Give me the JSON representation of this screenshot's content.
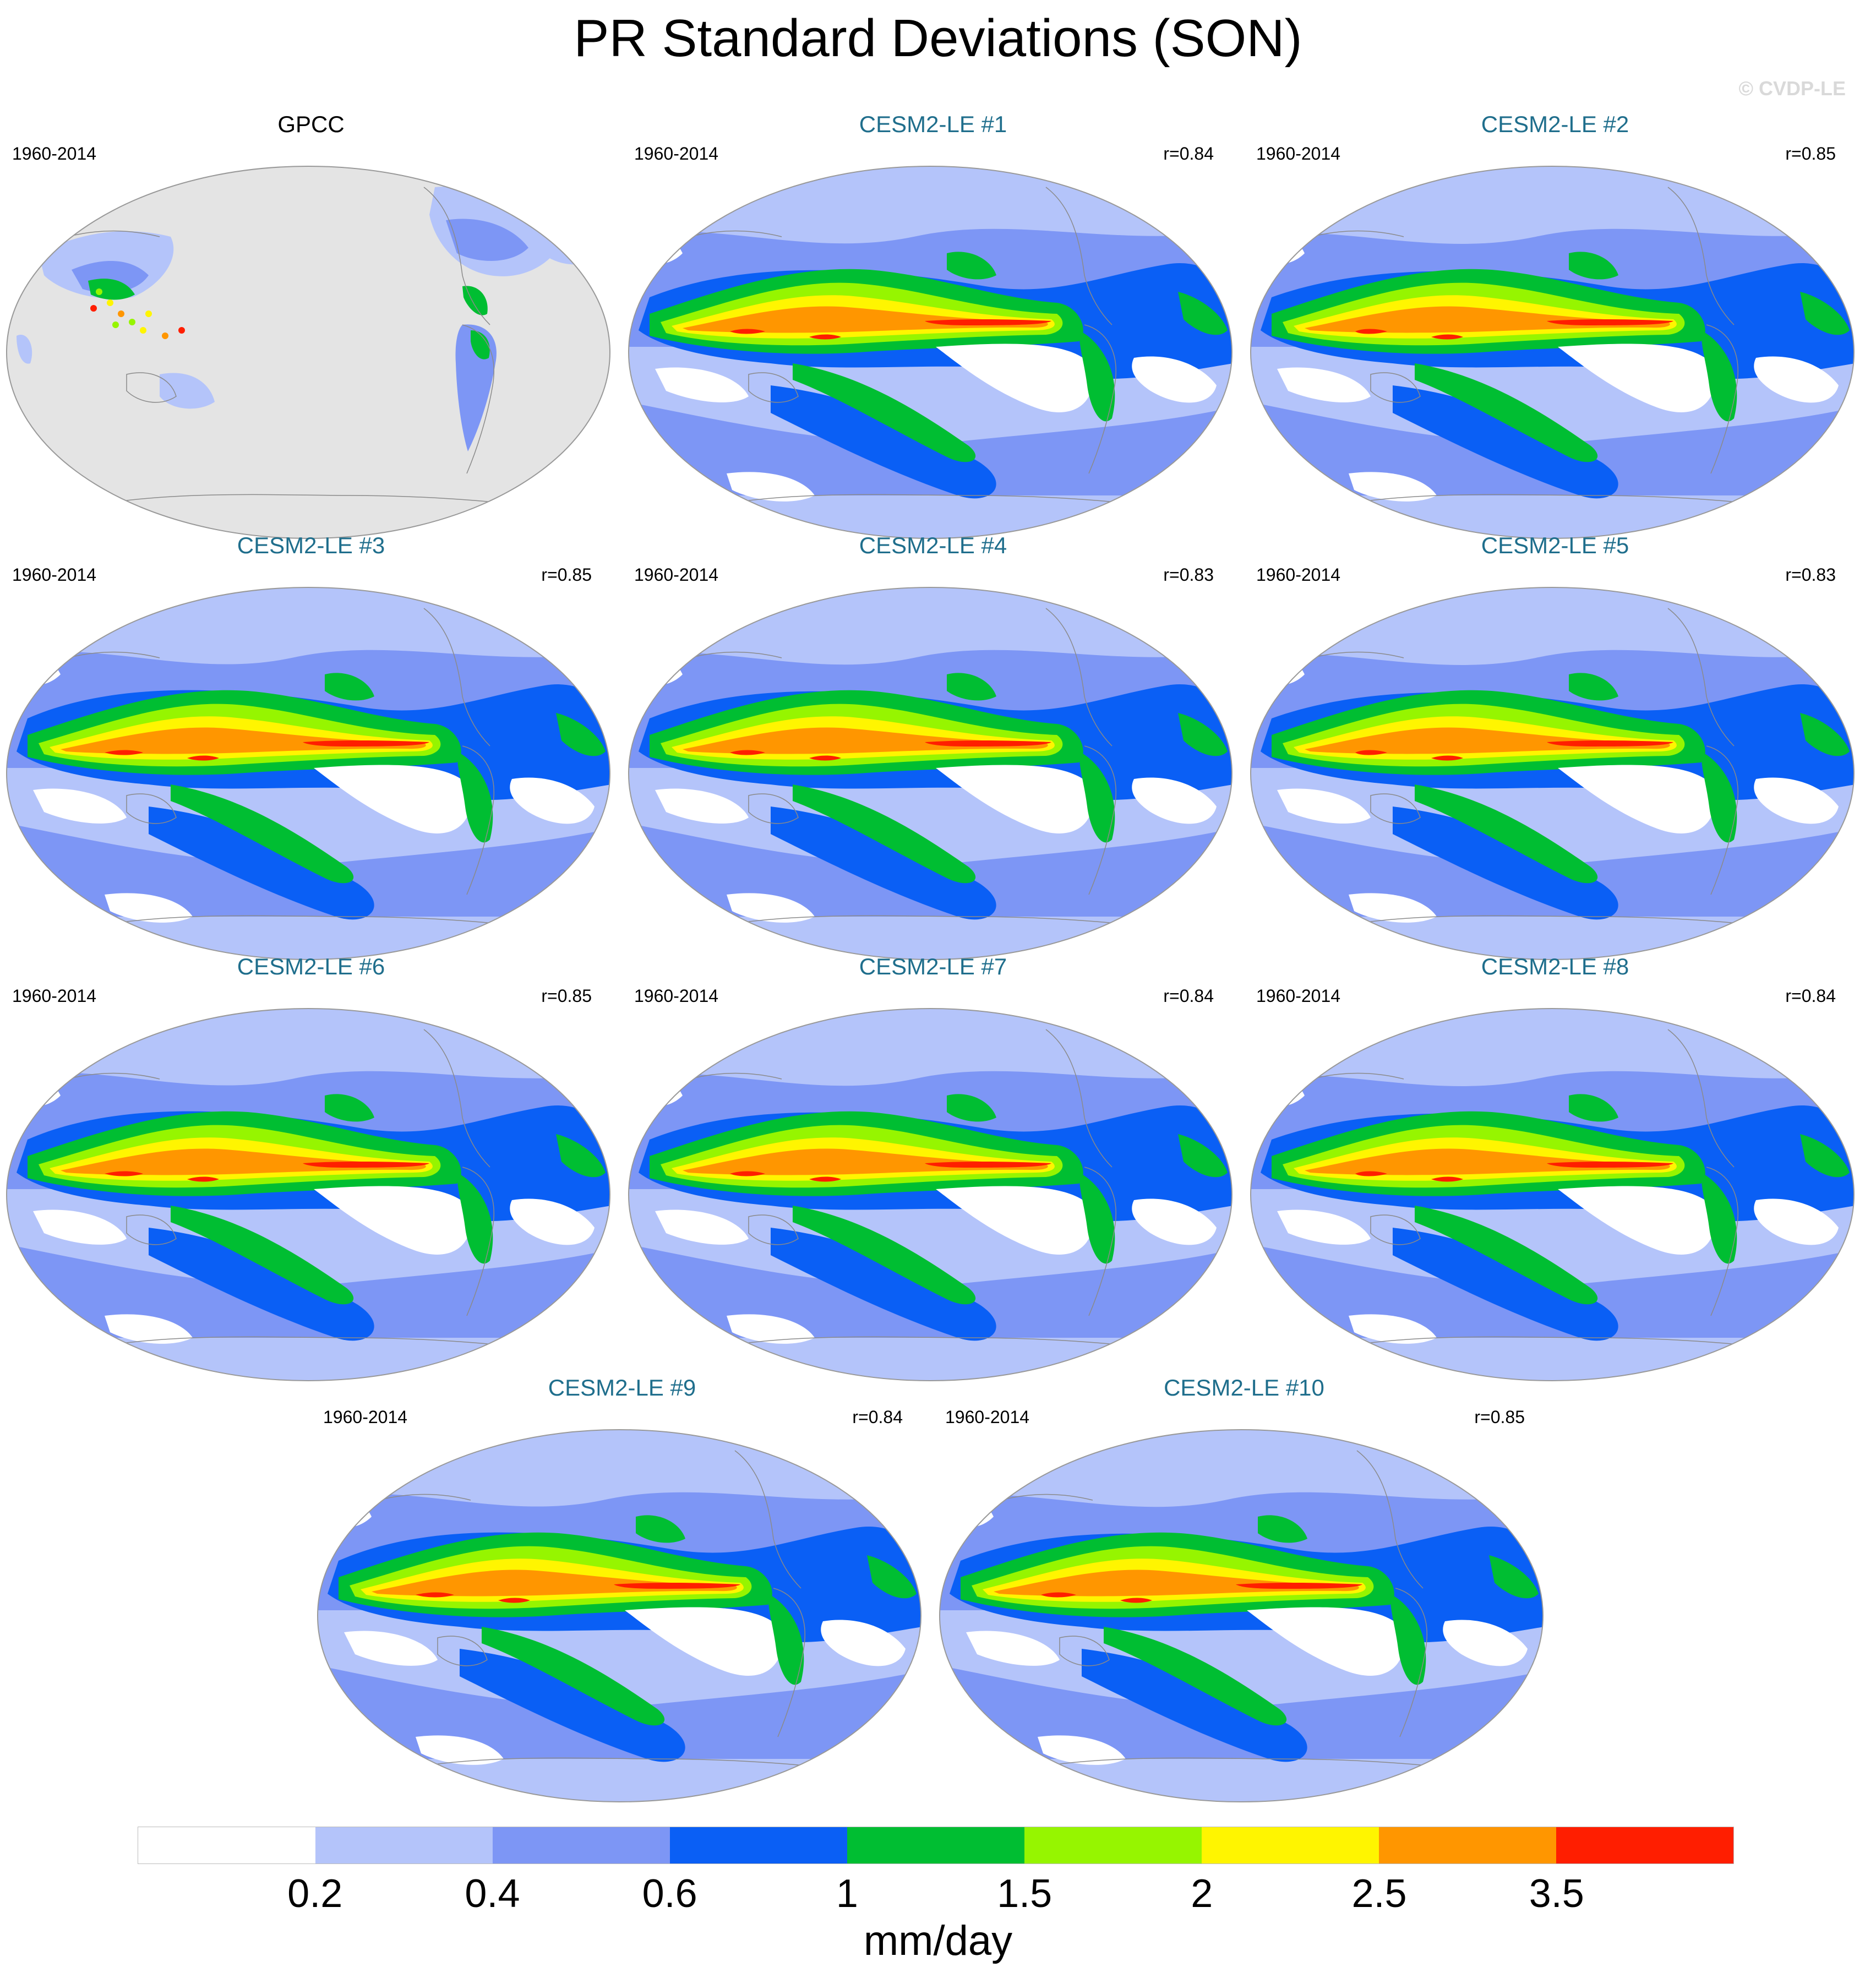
{
  "title": "PR Standard Deviations (SON)",
  "copyright": "© CVDP-LE",
  "panels": [
    {
      "title": "GPCC",
      "period": "1960-2014",
      "r": "",
      "type": "obs"
    },
    {
      "title": "CESM2-LE #1",
      "period": "1960-2014",
      "r": "r=0.84",
      "type": "model"
    },
    {
      "title": "CESM2-LE #2",
      "period": "1960-2014",
      "r": "r=0.85",
      "type": "model"
    },
    {
      "title": "CESM2-LE #3",
      "period": "1960-2014",
      "r": "r=0.85",
      "type": "model"
    },
    {
      "title": "CESM2-LE #4",
      "period": "1960-2014",
      "r": "r=0.83",
      "type": "model"
    },
    {
      "title": "CESM2-LE #5",
      "period": "1960-2014",
      "r": "r=0.83",
      "type": "model"
    },
    {
      "title": "CESM2-LE #6",
      "period": "1960-2014",
      "r": "r=0.85",
      "type": "model"
    },
    {
      "title": "CESM2-LE #7",
      "period": "1960-2014",
      "r": "r=0.84",
      "type": "model"
    },
    {
      "title": "CESM2-LE #8",
      "period": "1960-2014",
      "r": "r=0.84",
      "type": "model"
    },
    {
      "title": "CESM2-LE #9",
      "period": "1960-2014",
      "r": "r=0.84",
      "type": "model"
    },
    {
      "title": "CESM2-LE #10",
      "period": "1960-2014",
      "r": "r=0.85",
      "type": "model"
    }
  ],
  "colorbar": {
    "colors": [
      "#ffffff",
      "#b4c4fa",
      "#7d96f5",
      "#0a5ff5",
      "#00be32",
      "#96f500",
      "#fff500",
      "#ff9600",
      "#ff1e00"
    ],
    "tick_labels": [
      "0.2",
      "0.4",
      "0.6",
      "1",
      "1.5",
      "2",
      "2.5",
      "3.5"
    ],
    "units": "mm/day"
  },
  "map_colors": {
    "land_missing": "#e4e4e4",
    "coast": "#8a8a8a"
  }
}
